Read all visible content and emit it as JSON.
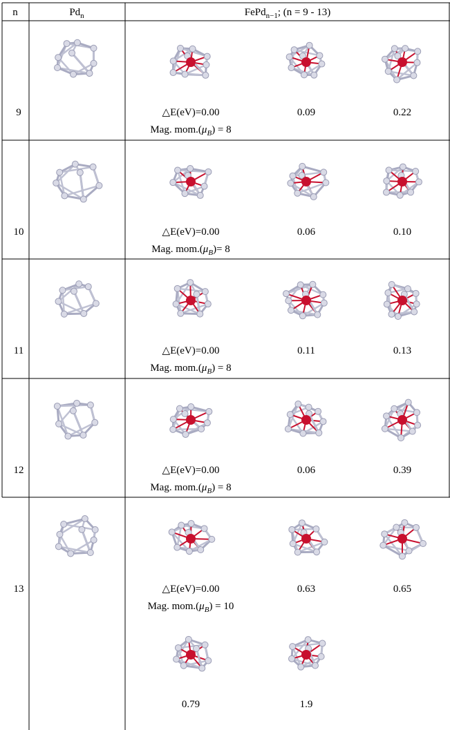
{
  "header": {
    "n": "n",
    "pd": {
      "base": "Pd",
      "sub": "n"
    },
    "fepd": {
      "base": "FePd",
      "sub": "n−1",
      "rest": "; (n = 9 - 13)"
    }
  },
  "rows": [
    {
      "n": "9",
      "energy_label": "△E(eV)=",
      "energies": [
        "0.00",
        "0.09",
        "0.22"
      ],
      "magnetic_moment": {
        "prefix": "Mag. mom.(",
        "symbol": "μ",
        "sub": "B",
        "suffix": ") = ",
        "value": "8"
      }
    },
    {
      "n": "10",
      "energy_label": "△E(eV)=",
      "energies": [
        "0.00",
        "0.06",
        "0.10"
      ],
      "magnetic_moment": {
        "prefix": "Mag. mom.(",
        "symbol": "μ",
        "sub": "B",
        "suffix": ")= ",
        "value": "8"
      }
    },
    {
      "n": "11",
      "energy_label": "△E(eV)=",
      "energies": [
        "0.00",
        "0.11",
        "0.13"
      ],
      "magnetic_moment": {
        "prefix": "Mag. mom.(",
        "symbol": "μ",
        "sub": "B",
        "suffix": ") = ",
        "value": "8"
      }
    },
    {
      "n": "12",
      "energy_label": "△E(eV)=",
      "energies": [
        "0.00",
        "0.06",
        "0.39"
      ],
      "magnetic_moment": {
        "prefix": "Mag. mom.(",
        "symbol": "μ",
        "sub": "B",
        "suffix": ") = ",
        "value": "8"
      }
    },
    {
      "n": "13",
      "energy_label": "△E(eV)=",
      "energies": [
        "0.00",
        "0.63",
        "0.65",
        "0.79",
        "1.9"
      ],
      "magnetic_moment": {
        "prefix": "Mag. mom.(",
        "symbol": "μ",
        "sub": "B",
        "suffix": ") = ",
        "value": "10"
      }
    }
  ]
}
